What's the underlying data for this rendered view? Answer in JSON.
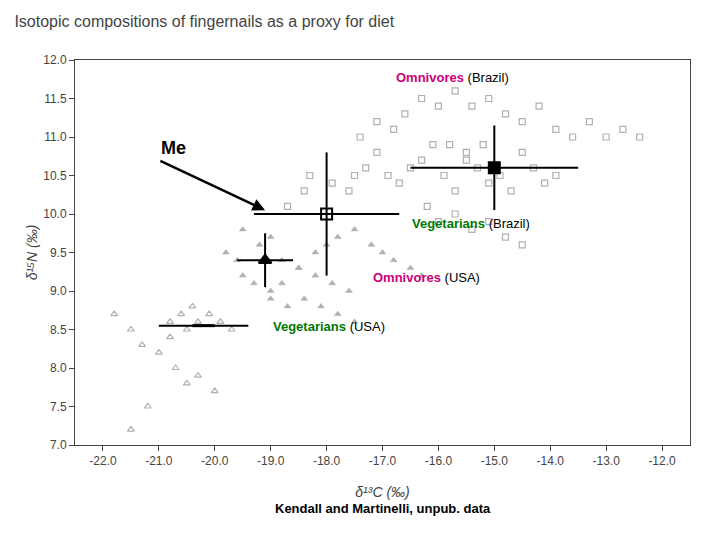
{
  "chart_data": {
    "type": "scatter",
    "title": "Isotopic compositions of fingernails as a proxy for diet",
    "xlabel": "δ¹³C (‰)",
    "ylabel": "δ¹⁵N (‰)",
    "xlim": [
      -22.5,
      -11.5
    ],
    "ylim": [
      7.0,
      12.0
    ],
    "xticks": [
      {
        "value": -22.0,
        "label": "-22.0"
      },
      {
        "value": -21.0,
        "label": "-21.0"
      },
      {
        "value": -20.0,
        "label": "-20.0"
      },
      {
        "value": -19.0,
        "label": "-19.0"
      },
      {
        "value": -18.0,
        "label": "-18.0"
      },
      {
        "value": -17.0,
        "label": "-17.0"
      },
      {
        "value": -16.0,
        "label": "-16.0"
      },
      {
        "value": -15.0,
        "label": "-15.0"
      },
      {
        "value": -14.0,
        "label": "-14.0"
      },
      {
        "value": -13.0,
        "label": "-13.0"
      },
      {
        "value": -12.0,
        "label": "-12.0"
      }
    ],
    "yticks": [
      {
        "value": 7.0,
        "label": "7.0"
      },
      7.5,
      {
        "value": 8.0,
        "label": "8.0"
      },
      8.5,
      {
        "value": 9.0,
        "label": "9.0"
      },
      9.5,
      {
        "value": 10.0,
        "label": "10.0"
      },
      10.5,
      {
        "value": 11.0,
        "label": "11.0"
      },
      11.5,
      {
        "value": 12.0,
        "label": "12.0"
      }
    ],
    "grid": false,
    "series": [
      {
        "marker": "square-open",
        "color": "#b0b0b0",
        "values": [
          [
            -18.7,
            10.1
          ],
          [
            -18.4,
            10.3
          ],
          [
            -18.3,
            10.5
          ],
          [
            -17.9,
            10.4
          ],
          [
            -17.6,
            10.3
          ],
          [
            -17.5,
            10.5
          ],
          [
            -17.3,
            10.6
          ],
          [
            -17.1,
            10.8
          ],
          [
            -16.9,
            10.5
          ],
          [
            -16.7,
            10.4
          ],
          [
            -16.5,
            10.6
          ],
          [
            -16.3,
            10.7
          ],
          [
            -16.1,
            10.9
          ],
          [
            -15.9,
            10.5
          ],
          [
            -15.7,
            10.3
          ],
          [
            -15.5,
            10.7
          ],
          [
            -15.3,
            10.6
          ],
          [
            -15.1,
            10.4
          ],
          [
            -14.9,
            10.5
          ],
          [
            -14.7,
            10.3
          ],
          [
            -14.5,
            10.8
          ],
          [
            -14.3,
            10.6
          ],
          [
            -14.1,
            10.4
          ],
          [
            -13.9,
            10.5
          ],
          [
            -17.4,
            11.0
          ],
          [
            -17.1,
            11.2
          ],
          [
            -16.8,
            11.1
          ],
          [
            -16.6,
            11.3
          ],
          [
            -16.3,
            11.5
          ],
          [
            -16.0,
            11.4
          ],
          [
            -15.7,
            11.6
          ],
          [
            -15.4,
            11.4
          ],
          [
            -15.1,
            11.5
          ],
          [
            -14.8,
            11.3
          ],
          [
            -14.5,
            11.2
          ],
          [
            -14.2,
            11.4
          ],
          [
            -13.9,
            11.1
          ],
          [
            -13.6,
            11.0
          ],
          [
            -13.3,
            11.2
          ],
          [
            -13.0,
            11.0
          ],
          [
            -12.7,
            11.1
          ],
          [
            -12.4,
            11.0
          ],
          [
            -15.8,
            10.9
          ],
          [
            -15.5,
            10.8
          ],
          [
            -15.2,
            10.9
          ],
          [
            -16.2,
            10.1
          ],
          [
            -16.0,
            9.9
          ],
          [
            -15.7,
            10.0
          ],
          [
            -15.4,
            9.8
          ],
          [
            -15.1,
            9.9
          ],
          [
            -14.8,
            9.7
          ],
          [
            -14.5,
            9.6
          ]
        ]
      },
      {
        "marker": "triangle-up",
        "color": "#b0b0b0",
        "values": [
          [
            -19.5,
            9.8
          ],
          [
            -19.2,
            9.6
          ],
          [
            -19.0,
            9.7
          ],
          [
            -18.8,
            9.4
          ],
          [
            -18.5,
            9.3
          ],
          [
            -18.2,
            9.5
          ],
          [
            -18.0,
            9.6
          ],
          [
            -17.8,
            9.7
          ],
          [
            -17.5,
            9.8
          ],
          [
            -17.2,
            9.6
          ],
          [
            -17.0,
            9.5
          ],
          [
            -16.8,
            9.4
          ],
          [
            -16.5,
            9.3
          ],
          [
            -16.3,
            9.2
          ],
          [
            -19.5,
            9.2
          ],
          [
            -19.3,
            9.1
          ],
          [
            -19.0,
            9.0
          ],
          [
            -18.8,
            9.1
          ],
          [
            -18.5,
            9.3
          ],
          [
            -18.2,
            9.2
          ],
          [
            -17.9,
            9.1
          ],
          [
            -17.6,
            9.0
          ],
          [
            -19.8,
            9.5
          ],
          [
            -19.6,
            9.4
          ],
          [
            -19.0,
            8.9
          ],
          [
            -18.7,
            8.8
          ],
          [
            -18.4,
            8.9
          ],
          [
            -18.1,
            8.8
          ],
          [
            -17.8,
            8.7
          ],
          [
            -17.5,
            8.6
          ]
        ]
      },
      {
        "marker": "triangle-up-open",
        "color": "#b0b0b0",
        "values": [
          [
            -21.5,
            7.2
          ],
          [
            -21.2,
            7.5
          ],
          [
            -21.0,
            8.2
          ],
          [
            -20.8,
            8.4
          ],
          [
            -20.5,
            8.5
          ],
          [
            -20.3,
            8.6
          ],
          [
            -20.1,
            8.7
          ],
          [
            -19.9,
            8.6
          ],
          [
            -20.7,
            8.0
          ],
          [
            -20.5,
            7.8
          ],
          [
            -20.3,
            7.9
          ],
          [
            -20.0,
            7.7
          ],
          [
            -21.3,
            8.3
          ],
          [
            -21.5,
            8.5
          ],
          [
            -20.8,
            8.6
          ],
          [
            -20.6,
            8.7
          ],
          [
            -20.4,
            8.8
          ],
          [
            -19.7,
            8.5
          ],
          [
            -21.8,
            8.7
          ]
        ]
      }
    ],
    "error_points": [
      {
        "marker": "square-open",
        "color": "black",
        "x": -18.0,
        "y": 10.0,
        "xerr": 1.3,
        "yerr": 0.8
      },
      {
        "marker": "square",
        "color": "black",
        "x": -15.0,
        "y": 10.6,
        "xerr": 1.5,
        "yerr": 0.55
      },
      {
        "marker": "triangle-up",
        "color": "black",
        "x": -19.1,
        "y": 9.4,
        "xerr": 0.5,
        "yerr": 0.35
      },
      {
        "marker": "line-ew",
        "color": "black",
        "x": -20.2,
        "y": 8.55,
        "xerr": 0.8,
        "yerr": 0.0
      }
    ],
    "annotations": [
      {
        "text": "Me",
        "x": -21.0,
        "y": 10.7,
        "arrow_to": [
          -19.1,
          10.05
        ]
      }
    ],
    "labels": [
      {
        "x": -16.8,
        "y": 11.65,
        "texts": [
          {
            "text": "Omnivores",
            "color": "#cc007a"
          },
          {
            "text": "(Brazil)",
            "color": "black"
          }
        ]
      },
      {
        "x": -16.5,
        "y": 9.75,
        "texts": [
          {
            "text": "Vegetarians",
            "color": "#007700"
          },
          {
            "text": "(Brazil)",
            "color": "black"
          }
        ]
      },
      {
        "x": -17.2,
        "y": 9.05,
        "texts": [
          {
            "text": "Omnivores",
            "color": "#cc007a"
          },
          {
            "text": "(USA)",
            "color": "black"
          }
        ]
      },
      {
        "x": -19.0,
        "y": 8.42,
        "texts": [
          {
            "text": "Vegetarians",
            "color": "#007700"
          },
          {
            "text": "(USA)",
            "color": "black"
          }
        ]
      }
    ],
    "footnote": "Kendall and Martinelli, unpub. data"
  }
}
